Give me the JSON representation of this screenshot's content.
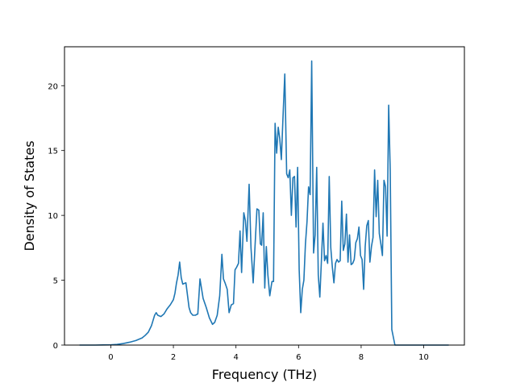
{
  "chart_data": {
    "type": "line",
    "title": "",
    "xlabel": "Frequency (THz)",
    "ylabel": "Density of States",
    "xlim": [
      -1.48,
      11.3
    ],
    "ylim": [
      0,
      23
    ],
    "xticks": [
      0,
      2,
      4,
      6,
      8,
      10
    ],
    "xtick_labels": [
      "0",
      "2",
      "4",
      "6",
      "8",
      "10"
    ],
    "yticks": [
      0,
      5,
      10,
      15,
      20
    ],
    "ytick_labels": [
      "0",
      "5",
      "10",
      "15",
      "20"
    ],
    "grid": false,
    "colors": {
      "line": "#1f77b4",
      "axes": "#000000",
      "background": "#ffffff"
    },
    "series": [
      {
        "x": [
          -1.0,
          -0.5,
          0.0,
          0.2,
          0.4,
          0.6,
          0.8,
          1.0,
          1.1,
          1.2,
          1.3,
          1.35,
          1.4,
          1.45,
          1.5,
          1.6,
          1.7,
          1.8,
          1.9,
          2.0,
          2.05,
          2.1,
          2.15,
          2.2,
          2.25,
          2.3,
          2.4,
          2.5,
          2.55,
          2.62,
          2.7,
          2.78,
          2.85,
          2.95,
          3.05,
          3.15,
          3.25,
          3.32,
          3.4,
          3.48,
          3.55,
          3.6,
          3.65,
          3.72,
          3.78,
          3.85,
          3.92,
          3.97,
          4.02,
          4.08,
          4.13,
          4.18,
          4.25,
          4.3,
          4.35,
          4.42,
          4.48,
          4.55,
          4.6,
          4.67,
          4.73,
          4.78,
          4.82,
          4.87,
          4.92,
          4.97,
          5.02,
          5.08,
          5.15,
          5.2,
          5.25,
          5.3,
          5.35,
          5.4,
          5.45,
          5.5,
          5.56,
          5.62,
          5.67,
          5.72,
          5.77,
          5.82,
          5.87,
          5.92,
          5.97,
          6.02,
          6.07,
          6.12,
          6.17,
          6.22,
          6.27,
          6.32,
          6.37,
          6.42,
          6.48,
          6.53,
          6.58,
          6.63,
          6.68,
          6.73,
          6.78,
          6.83,
          6.88,
          6.93,
          6.98,
          7.03,
          7.08,
          7.13,
          7.18,
          7.23,
          7.28,
          7.33,
          7.38,
          7.43,
          7.48,
          7.53,
          7.58,
          7.63,
          7.68,
          7.73,
          7.78,
          7.83,
          7.88,
          7.93,
          7.98,
          8.03,
          8.08,
          8.13,
          8.18,
          8.23,
          8.28,
          8.33,
          8.38,
          8.43,
          8.48,
          8.53,
          8.58,
          8.63,
          8.68,
          8.73,
          8.78,
          8.83,
          8.88,
          8.93,
          8.98,
          9.03,
          9.08,
          9.13,
          9.18,
          9.23,
          9.28,
          9.33,
          9.38,
          9.43,
          9.48,
          9.53,
          9.58,
          9.63,
          9.68,
          9.73,
          9.78,
          9.83,
          9.9,
          10.0,
          10.5,
          10.8
        ],
        "y": [
          0.0,
          0.0,
          0.02,
          0.05,
          0.12,
          0.22,
          0.35,
          0.55,
          0.75,
          1.0,
          1.5,
          1.9,
          2.3,
          2.5,
          2.3,
          2.2,
          2.4,
          2.8,
          3.1,
          3.5,
          4.0,
          4.8,
          5.4,
          6.4,
          5.2,
          4.7,
          4.8,
          2.9,
          2.5,
          2.3,
          2.3,
          2.4,
          5.1,
          3.6,
          2.9,
          2.1,
          1.6,
          1.75,
          2.3,
          3.8,
          7.0,
          5.1,
          4.8,
          4.3,
          2.5,
          3.1,
          3.2,
          5.8,
          6.0,
          6.3,
          8.8,
          5.6,
          10.2,
          9.6,
          8.0,
          12.4,
          7.5,
          4.8,
          7.2,
          10.5,
          10.4,
          7.8,
          7.7,
          10.2,
          4.4,
          7.6,
          5.4,
          3.8,
          4.9,
          4.9,
          17.1,
          14.8,
          16.8,
          15.9,
          14.3,
          17.4,
          20.9,
          13.2,
          12.9,
          13.5,
          10.0,
          12.9,
          13.0,
          9.1,
          13.7,
          5.8,
          2.5,
          4.3,
          5.0,
          7.8,
          9.5,
          12.2,
          11.6,
          21.9,
          7.1,
          8.5,
          13.7,
          5.4,
          3.7,
          6.5,
          9.4,
          6.5,
          6.9,
          6.3,
          13.0,
          7.5,
          6.0,
          4.8,
          6.3,
          6.6,
          6.4,
          6.5,
          11.1,
          7.3,
          7.8,
          10.1,
          6.4,
          8.5,
          6.2,
          6.3,
          6.6,
          7.9,
          8.2,
          9.1,
          6.9,
          6.6,
          4.3,
          7.6,
          9.2,
          9.6,
          6.4,
          7.6,
          8.3,
          13.5,
          9.9,
          12.7,
          8.6,
          7.8,
          6.9,
          12.7,
          12.2,
          8.4,
          18.5,
          13.4,
          1.2,
          0.6,
          0.0,
          0.0,
          0.0,
          0.0,
          0.0,
          0.0,
          0.0,
          0.0,
          0.0,
          0.0,
          0.0,
          0.0,
          0.0,
          0.0,
          0.0,
          0.0,
          0.0,
          0.0,
          0.0,
          0.0
        ]
      }
    ]
  }
}
